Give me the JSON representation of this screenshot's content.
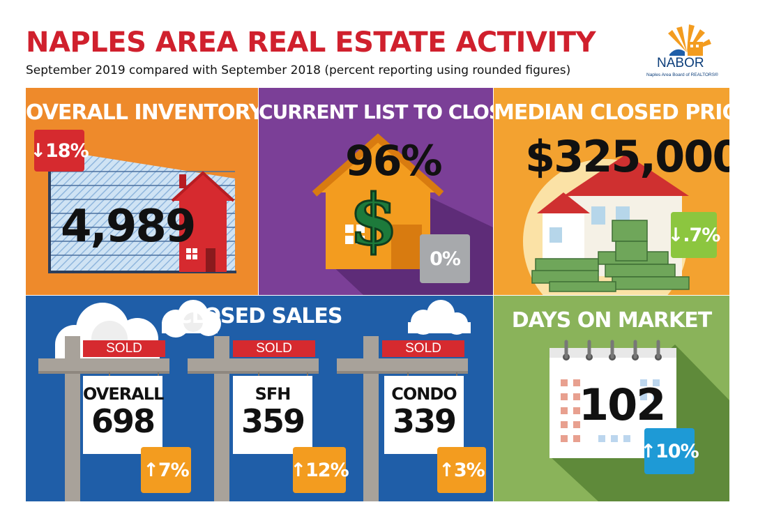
{
  "header": {
    "title": "NAPLES AREA REAL ESTATE ACTIVITY",
    "subtitle": "September 2019 compared with September 2018 (percent reporting using rounded figures)"
  },
  "logo": {
    "name": "NABOR",
    "tagline": "Naples Area Board of REALTORS®"
  },
  "panels": {
    "overall_inventory": {
      "title": "OVERALL INVENTORY",
      "value": "4,989",
      "change": "18%",
      "direction": "down",
      "color": "#ee8a2b"
    },
    "list_to_closed": {
      "title": "CURRENT LIST TO CLOSED",
      "value": "96%",
      "change": "0%",
      "color": "#7b3f97"
    },
    "median_price": {
      "title": "MEDIAN CLOSED PRICE",
      "value": "$325,000",
      "change": ".7%",
      "direction": "down",
      "color": "#f3a230"
    },
    "closed_sales": {
      "title": "CLOSED SALES",
      "color": "#1f5ea8",
      "signs": [
        {
          "sold": "SOLD",
          "label": "OVERALL",
          "value": "698",
          "change": "7%",
          "direction": "up"
        },
        {
          "sold": "SOLD",
          "label": "SFH",
          "value": "359",
          "change": "12%",
          "direction": "up"
        },
        {
          "sold": "SOLD",
          "label": "CONDO",
          "value": "339",
          "change": "3%",
          "direction": "up"
        }
      ]
    },
    "days_on_market": {
      "title": "DAYS ON MARKET",
      "value": "102",
      "change": "10%",
      "direction": "up",
      "color": "#8ab35a"
    }
  },
  "colors": {
    "title_red": "#d0202d",
    "badge_red": "#d62a2f",
    "badge_green": "#8cc63f",
    "badge_gray": "#a7a9ac",
    "badge_orange": "#f39c1f",
    "badge_blue": "#1e9ad6"
  }
}
